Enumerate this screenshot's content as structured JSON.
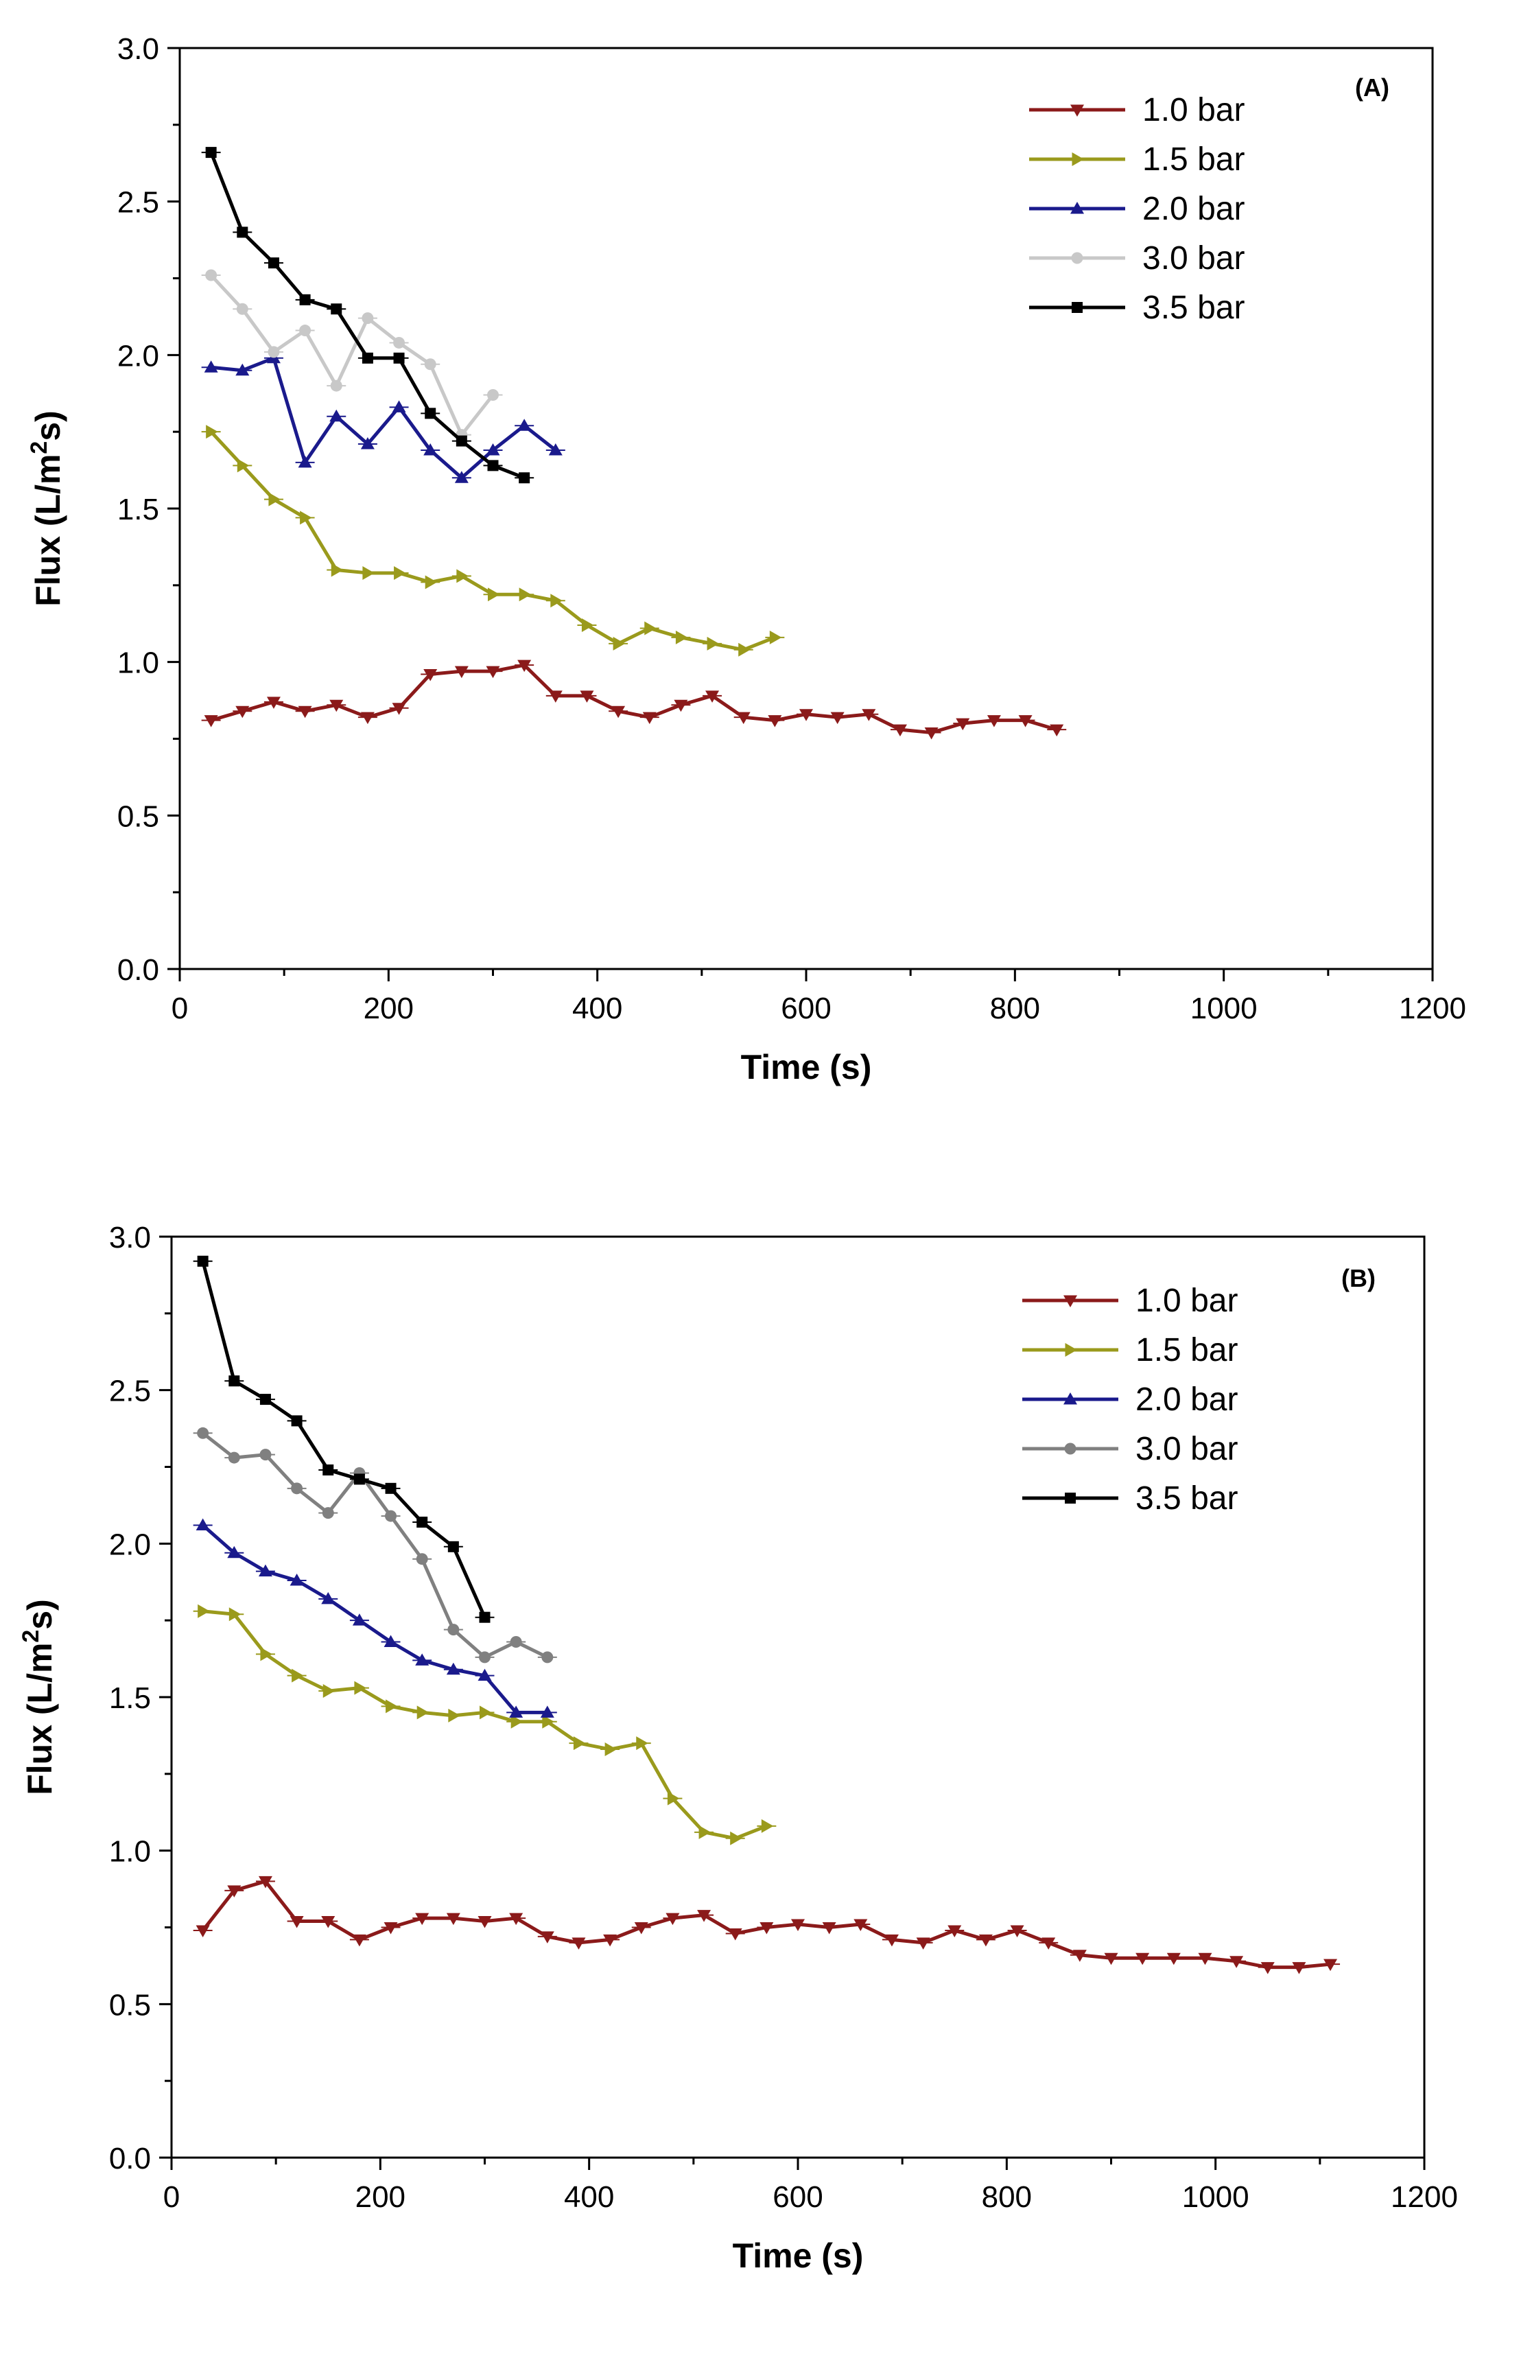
{
  "chart_data": [
    {
      "type": "line",
      "panel": "(A)",
      "xlabel": "Time (s)",
      "ylabel": "Flux (L/m2s)",
      "xlim": [
        0,
        1200
      ],
      "ylim": [
        0,
        3.0
      ],
      "xticks": [
        "0",
        "200",
        "400",
        "600",
        "800",
        "1000",
        "1200"
      ],
      "yticks": [
        "0.0",
        "0.5",
        "1.0",
        "1.5",
        "2.0",
        "2.5",
        "3.0"
      ],
      "legend_position": "top-right",
      "series": [
        {
          "name": "1.0 bar",
          "color": "#8b1a1a",
          "marker": "triangle-down",
          "x": [
            30,
            60,
            90,
            120,
            150,
            180,
            210,
            240,
            270,
            300,
            330,
            360,
            390,
            420,
            450,
            480,
            510,
            540,
            570,
            600,
            630,
            660,
            690,
            720,
            750,
            780,
            810,
            840
          ],
          "y": [
            0.81,
            0.84,
            0.87,
            0.84,
            0.86,
            0.82,
            0.85,
            0.96,
            0.97,
            0.97,
            0.99,
            0.89,
            0.89,
            0.84,
            0.82,
            0.86,
            0.89,
            0.82,
            0.81,
            0.83,
            0.82,
            0.83,
            0.78,
            0.77,
            0.8,
            0.81,
            0.81,
            0.78
          ]
        },
        {
          "name": "1.5 bar",
          "color": "#9a9a1c",
          "marker": "triangle-right",
          "x": [
            30,
            60,
            90,
            120,
            150,
            180,
            210,
            240,
            270,
            300,
            330,
            360,
            390,
            420,
            450,
            480,
            510,
            540,
            570
          ],
          "y": [
            1.75,
            1.64,
            1.53,
            1.47,
            1.3,
            1.29,
            1.29,
            1.26,
            1.28,
            1.22,
            1.22,
            1.2,
            1.12,
            1.06,
            1.11,
            1.08,
            1.06,
            1.04,
            1.08
          ]
        },
        {
          "name": "2.0 bar",
          "color": "#1a1a8c",
          "marker": "triangle-up",
          "x": [
            30,
            60,
            90,
            120,
            150,
            180,
            210,
            240,
            270,
            300,
            330,
            360
          ],
          "y": [
            1.96,
            1.95,
            1.99,
            1.65,
            1.8,
            1.71,
            1.83,
            1.69,
            1.6,
            1.69,
            1.77,
            1.69
          ]
        },
        {
          "name": "3.0 bar",
          "color": "#c8c8c8",
          "marker": "circle",
          "x": [
            30,
            60,
            90,
            120,
            150,
            180,
            210,
            240,
            270,
            300
          ],
          "y": [
            2.26,
            2.15,
            2.01,
            2.08,
            1.9,
            2.12,
            2.04,
            1.97,
            1.74,
            1.87
          ]
        },
        {
          "name": "3.5 bar",
          "color": "#000000",
          "marker": "square",
          "x": [
            30,
            60,
            90,
            120,
            150,
            180,
            210,
            240,
            270,
            300,
            330
          ],
          "y": [
            2.66,
            2.4,
            2.3,
            2.18,
            2.15,
            1.99,
            1.99,
            1.81,
            1.72,
            1.64,
            1.6
          ]
        }
      ]
    },
    {
      "type": "line",
      "panel": "(B)",
      "xlabel": "Time (s)",
      "ylabel": "Flux (L/m2s)",
      "xlim": [
        0,
        1200
      ],
      "ylim": [
        0,
        3.0
      ],
      "xticks": [
        "0",
        "200",
        "400",
        "600",
        "800",
        "1000",
        "1200"
      ],
      "yticks": [
        "0.0",
        "0.5",
        "1.0",
        "1.5",
        "2.0",
        "2.5",
        "3.0"
      ],
      "legend_position": "top-right",
      "series": [
        {
          "name": "1.0 bar",
          "color": "#8b1a1a",
          "marker": "triangle-down",
          "x": [
            30,
            60,
            90,
            120,
            150,
            180,
            210,
            240,
            270,
            300,
            330,
            360,
            390,
            420,
            450,
            480,
            510,
            540,
            570,
            600,
            630,
            660,
            690,
            720,
            750,
            780,
            810,
            840,
            870,
            900,
            930,
            960,
            990,
            1020,
            1050,
            1080,
            1110
          ],
          "y": [
            0.74,
            0.87,
            0.9,
            0.77,
            0.77,
            0.71,
            0.75,
            0.78,
            0.78,
            0.77,
            0.78,
            0.72,
            0.7,
            0.71,
            0.75,
            0.78,
            0.79,
            0.73,
            0.75,
            0.76,
            0.75,
            0.76,
            0.71,
            0.7,
            0.74,
            0.71,
            0.74,
            0.7,
            0.66,
            0.65,
            0.65,
            0.65,
            0.65,
            0.64,
            0.62,
            0.62,
            0.63
          ]
        },
        {
          "name": "1.5 bar",
          "color": "#9a9a1c",
          "marker": "triangle-right",
          "x": [
            30,
            60,
            90,
            120,
            150,
            180,
            210,
            240,
            270,
            300,
            330,
            360,
            390,
            420,
            450,
            480,
            510,
            540,
            570
          ],
          "y": [
            1.78,
            1.77,
            1.64,
            1.57,
            1.52,
            1.53,
            1.47,
            1.45,
            1.44,
            1.45,
            1.42,
            1.42,
            1.35,
            1.33,
            1.35,
            1.17,
            1.06,
            1.04,
            1.08
          ]
        },
        {
          "name": "2.0 bar",
          "color": "#1a1a8c",
          "marker": "triangle-up",
          "x": [
            30,
            60,
            90,
            120,
            150,
            180,
            210,
            240,
            270,
            300,
            330,
            360
          ],
          "y": [
            2.06,
            1.97,
            1.91,
            1.88,
            1.82,
            1.75,
            1.68,
            1.62,
            1.59,
            1.57,
            1.45,
            1.45
          ]
        },
        {
          "name": "3.0 bar",
          "color": "#808080",
          "marker": "circle",
          "x": [
            30,
            60,
            90,
            120,
            150,
            180,
            210,
            240,
            270,
            300,
            330,
            360
          ],
          "y": [
            2.36,
            2.28,
            2.29,
            2.18,
            2.1,
            2.23,
            2.09,
            1.95,
            1.72,
            1.63,
            1.68,
            1.63
          ]
        },
        {
          "name": "3.5 bar",
          "color": "#000000",
          "marker": "square",
          "x": [
            30,
            60,
            90,
            120,
            150,
            180,
            210,
            240,
            270,
            300
          ],
          "y": [
            2.92,
            2.53,
            2.47,
            2.4,
            2.24,
            2.21,
            2.18,
            2.07,
            1.99,
            1.76
          ]
        }
      ]
    }
  ]
}
